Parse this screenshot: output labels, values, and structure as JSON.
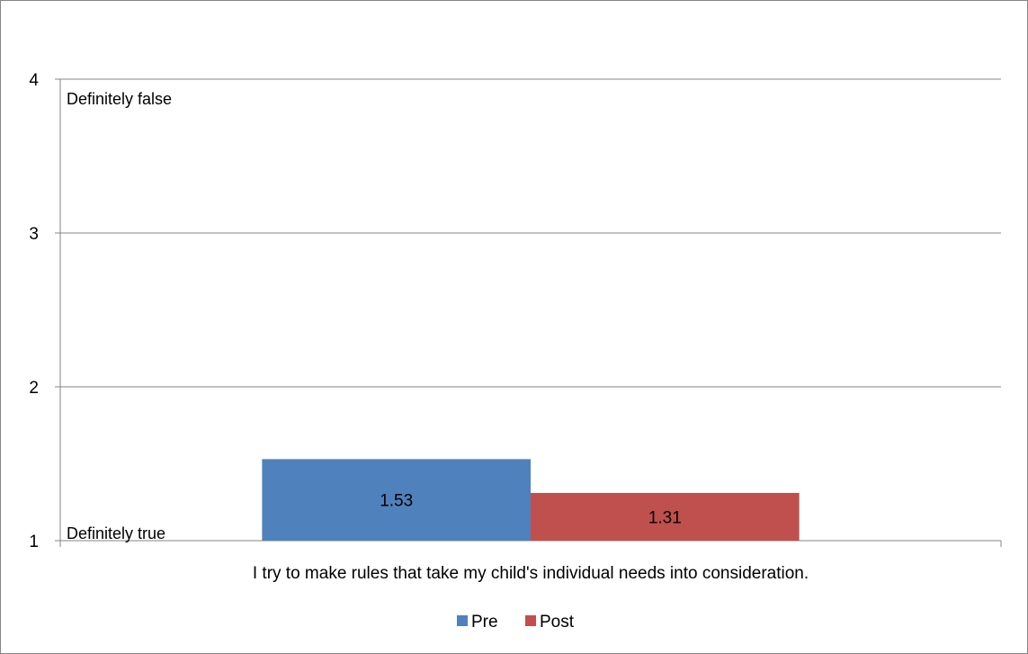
{
  "chart_data": {
    "type": "bar",
    "categories": [
      "I try to make rules that take my child's individual needs into consideration."
    ],
    "series": [
      {
        "name": "Pre",
        "values": [
          1.53
        ],
        "color": "#4F81BD"
      },
      {
        "name": "Post",
        "values": [
          1.31
        ],
        "color": "#C0504D"
      }
    ],
    "ylim": [
      1,
      4
    ],
    "yticks": [
      1,
      2,
      3,
      4
    ],
    "annotations": {
      "top": "Definitely false",
      "bottom": "Definitely true"
    },
    "grid": true,
    "legend": "bottom"
  }
}
